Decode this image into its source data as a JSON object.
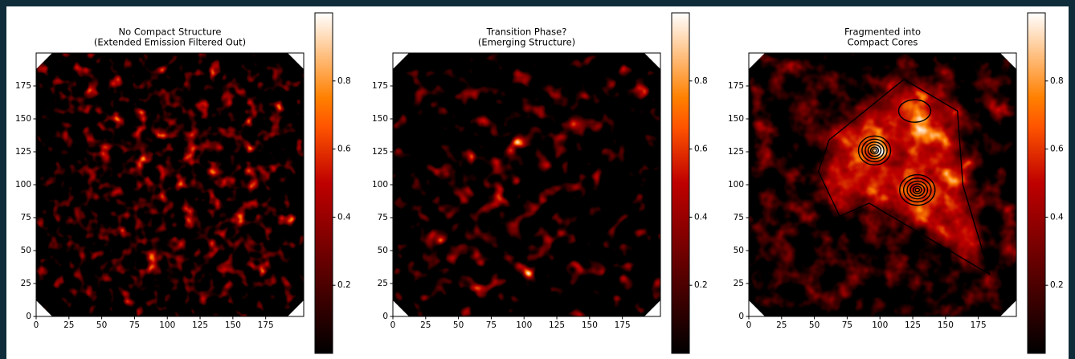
{
  "chart_data": [
    {
      "type": "heatmap",
      "title": [
        "No Compact Structure",
        "(Extended Emission Filtered Out)"
      ],
      "cmap": "gist_heat",
      "xlim": [
        0,
        204
      ],
      "ylim": [
        0,
        200
      ],
      "xticks": [
        0,
        25,
        50,
        75,
        100,
        125,
        150,
        175
      ],
      "yticks": [
        0,
        25,
        50,
        75,
        100,
        125,
        150,
        175
      ],
      "clim": [
        0,
        1
      ],
      "cbar_ticks": [
        0.2,
        0.4,
        0.6,
        0.8
      ]
    },
    {
      "type": "heatmap",
      "title": [
        "Transition Phase?",
        "(Emerging Structure)"
      ],
      "cmap": "gist_heat",
      "xlim": [
        0,
        204
      ],
      "ylim": [
        0,
        200
      ],
      "xticks": [
        0,
        25,
        50,
        75,
        100,
        125,
        150,
        175
      ],
      "yticks": [
        0,
        25,
        50,
        75,
        100,
        125,
        150,
        175
      ],
      "clim": [
        0,
        1
      ],
      "cbar_ticks": [
        0.2,
        0.4,
        0.6,
        0.8
      ]
    },
    {
      "type": "heatmap",
      "title": [
        "Fragmented into",
        "Compact Cores"
      ],
      "cmap": "gist_heat",
      "xlim": [
        0,
        204
      ],
      "ylim": [
        0,
        200
      ],
      "xticks": [
        0,
        25,
        50,
        75,
        100,
        125,
        150,
        175
      ],
      "yticks": [
        0,
        25,
        50,
        75,
        100,
        125,
        150,
        175
      ],
      "clim": [
        0,
        1
      ],
      "cbar_ticks": [
        0.2,
        0.4,
        0.6,
        0.8
      ]
    }
  ]
}
